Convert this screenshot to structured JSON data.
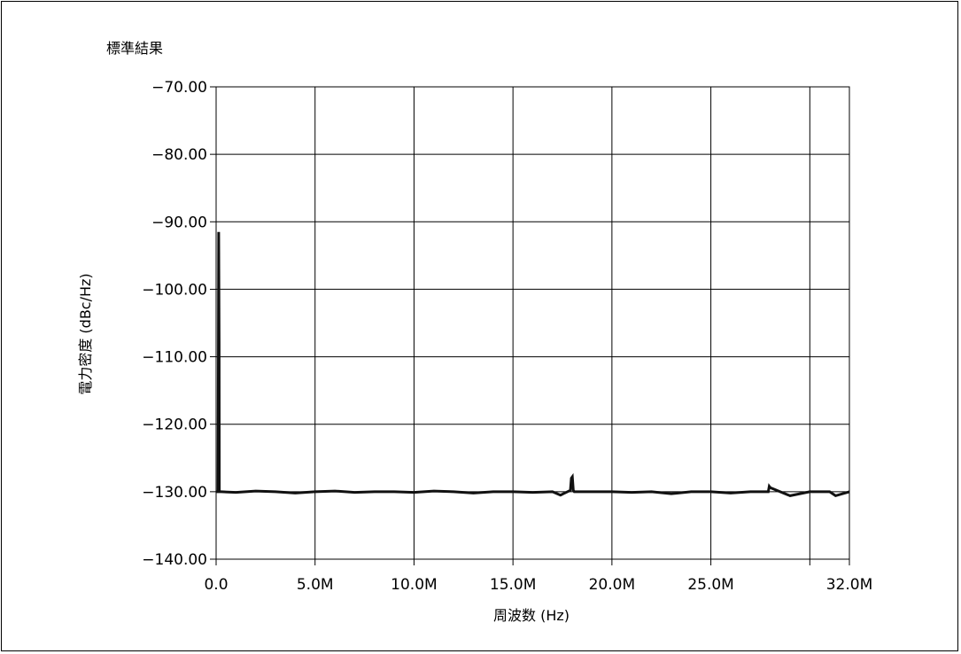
{
  "chart_data": {
    "type": "line",
    "title": "標準結果",
    "xlabel": "周波数 (Hz)",
    "ylabel": "電力密度 (dBc/Hz)",
    "xlim": [
      0,
      32000000
    ],
    "ylim": [
      -140,
      -70
    ],
    "grid": true,
    "x_ticks": [
      {
        "value": 0,
        "label": "0.0"
      },
      {
        "value": 5000000,
        "label": "5.0M"
      },
      {
        "value": 10000000,
        "label": "10.0M"
      },
      {
        "value": 15000000,
        "label": "15.0M"
      },
      {
        "value": 20000000,
        "label": "20.0M"
      },
      {
        "value": 25000000,
        "label": "25.0M"
      },
      {
        "value": 32000000,
        "label": "32.0M"
      }
    ],
    "x_extra_gridlines": [
      30000000
    ],
    "y_ticks": [
      {
        "value": -70,
        "label": "−70.00"
      },
      {
        "value": -80,
        "label": "−80.00"
      },
      {
        "value": -90,
        "label": "−90.00"
      },
      {
        "value": -100,
        "label": "−100.00"
      },
      {
        "value": -110,
        "label": "−110.00"
      },
      {
        "value": -120,
        "label": "−120.00"
      },
      {
        "value": -130,
        "label": "−130.00"
      },
      {
        "value": -140,
        "label": "−140.00"
      }
    ],
    "series": [
      {
        "color": "#111111",
        "x": [
          0,
          100000,
          130000,
          150000,
          160000,
          170000,
          180000,
          190000,
          250000,
          1000000,
          2000000,
          3000000,
          4000000,
          5000000,
          6000000,
          7000000,
          8000000,
          9000000,
          10000000,
          11000000,
          12000000,
          13000000,
          14000000,
          15000000,
          16000000,
          17000000,
          17400000,
          17900000,
          17950000,
          18000000,
          18050000,
          18100000,
          19000000,
          20000000,
          21000000,
          22000000,
          23000000,
          24000000,
          25000000,
          26000000,
          27000000,
          27900000,
          27950000,
          28000000,
          28500000,
          29000000,
          30000000,
          31000000,
          31300000,
          32000000
        ],
        "y": [
          -130,
          -130,
          -91.5,
          -108,
          -130,
          -130,
          -130,
          -130,
          -130,
          -130.1,
          -129.9,
          -130,
          -130.2,
          -130,
          -129.9,
          -130.1,
          -130,
          -130,
          -130.1,
          -129.9,
          -130,
          -130.2,
          -130,
          -130,
          -130.1,
          -130,
          -130.5,
          -129.8,
          -128,
          -127.8,
          -129.8,
          -130,
          -130,
          -130,
          -130.1,
          -130,
          -130.3,
          -130,
          -130,
          -130.2,
          -130,
          -130,
          -129.2,
          -129.4,
          -130,
          -130.6,
          -130,
          -130,
          -130.6,
          -130
        ]
      }
    ]
  }
}
